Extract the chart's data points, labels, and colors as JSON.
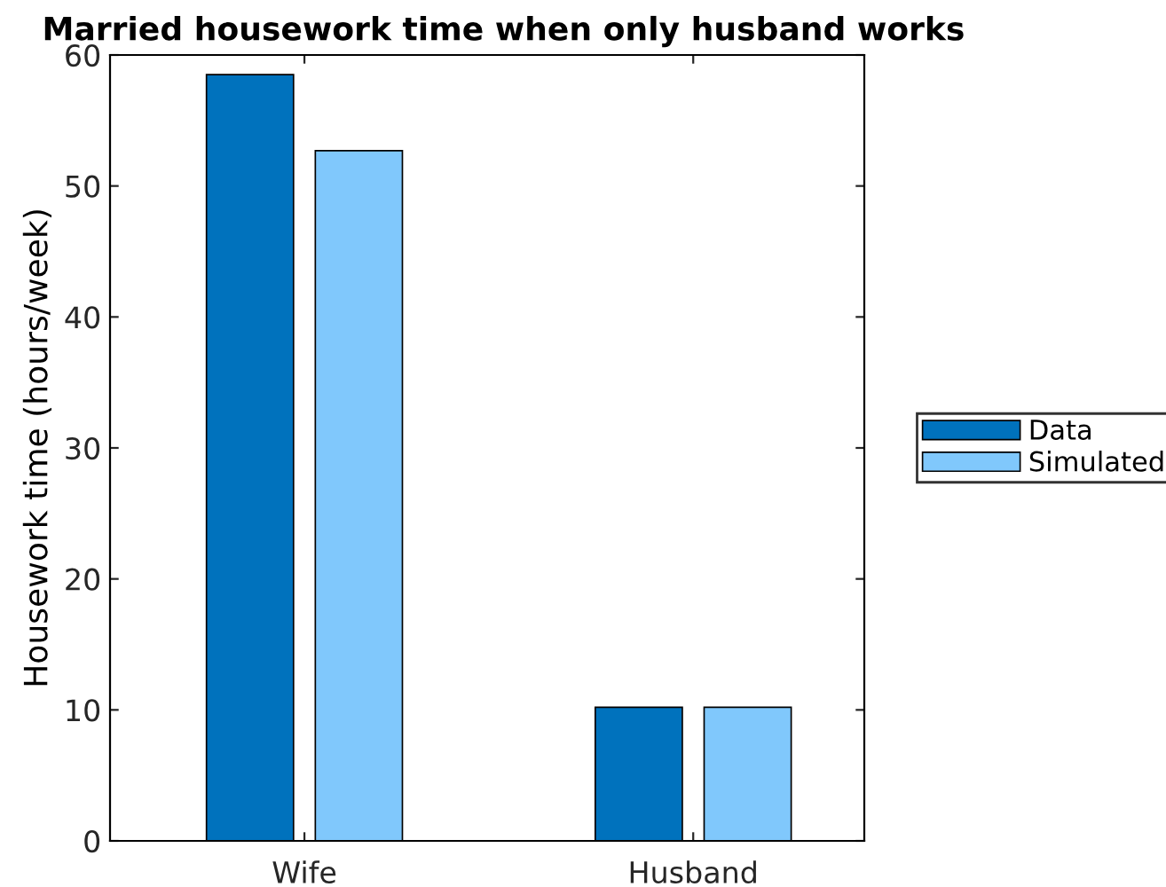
{
  "chart_data": {
    "type": "bar",
    "title": "Married housework time when only husband works",
    "ylabel": "Housework time (hours/week)",
    "categories": [
      "Wife",
      "Husband"
    ],
    "series": [
      {
        "name": "Data",
        "color": "#0072bd",
        "values": [
          58.5,
          10.2
        ]
      },
      {
        "name": "Simulated",
        "color": "#80c8fc",
        "values": [
          52.7,
          10.2
        ]
      }
    ],
    "ylim": [
      0,
      60
    ],
    "yticks": [
      0,
      10,
      20,
      30,
      40,
      50,
      60
    ],
    "grid": false,
    "legend": "right"
  }
}
